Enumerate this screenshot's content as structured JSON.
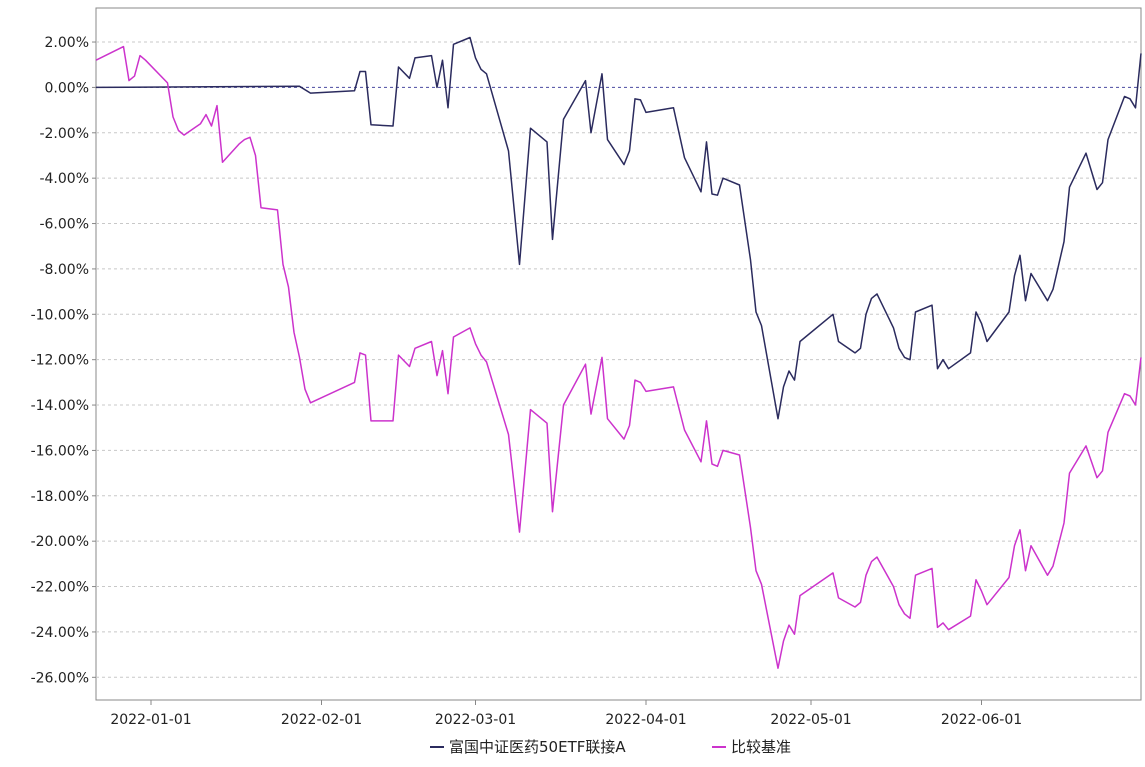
{
  "chart_data": {
    "type": "line",
    "title": "",
    "xlabel": "",
    "ylabel": "",
    "x_ticks": [
      "2022-01-01",
      "2022-02-01",
      "2022-03-01",
      "2022-04-01",
      "2022-05-01",
      "2022-06-01"
    ],
    "y_ticks": [
      "2.00%",
      "0.00%",
      "-2.00%",
      "-4.00%",
      "-6.00%",
      "-8.00%",
      "-10.00%",
      "-12.00%",
      "-14.00%",
      "-16.00%",
      "-18.00%",
      "-20.00%",
      "-22.00%",
      "-24.00%",
      "-26.00%"
    ],
    "ylim": [
      -27,
      3.5
    ],
    "xlim": [
      "2021-12-22",
      "2022-06-30"
    ],
    "grid": true,
    "legend_position": "bottom-center",
    "reference_line": 0,
    "series": [
      {
        "name": "富国中证医药50ETF联接A",
        "color": "#2b2b5e",
        "points": [
          [
            "2021-12-22",
            0.0
          ],
          [
            "2022-01-28",
            0.05
          ],
          [
            "2022-01-30",
            -0.25
          ],
          [
            "2022-02-07",
            -0.15
          ],
          [
            "2022-02-08",
            0.7
          ],
          [
            "2022-02-09",
            0.7
          ],
          [
            "2022-02-10",
            -1.65
          ],
          [
            "2022-02-14",
            -1.7
          ],
          [
            "2022-02-15",
            0.9
          ],
          [
            "2022-02-17",
            0.4
          ],
          [
            "2022-02-18",
            1.3
          ],
          [
            "2022-02-21",
            1.4
          ],
          [
            "2022-02-22",
            0.0
          ],
          [
            "2022-02-23",
            1.2
          ],
          [
            "2022-02-24",
            -0.9
          ],
          [
            "2022-02-25",
            1.9
          ],
          [
            "2022-02-28",
            2.2
          ],
          [
            "2022-03-01",
            1.3
          ],
          [
            "2022-03-02",
            0.8
          ],
          [
            "2022-03-03",
            0.6
          ],
          [
            "2022-03-07",
            -2.8
          ],
          [
            "2022-03-09",
            -7.8
          ],
          [
            "2022-03-11",
            -1.8
          ],
          [
            "2022-03-14",
            -2.4
          ],
          [
            "2022-03-15",
            -6.7
          ],
          [
            "2022-03-17",
            -1.4
          ],
          [
            "2022-03-21",
            0.3
          ],
          [
            "2022-03-22",
            -2.0
          ],
          [
            "2022-03-24",
            0.6
          ],
          [
            "2022-03-25",
            -2.3
          ],
          [
            "2022-03-28",
            -3.4
          ],
          [
            "2022-03-29",
            -2.8
          ],
          [
            "2022-03-30",
            -0.5
          ],
          [
            "2022-03-31",
            -0.55
          ],
          [
            "2022-04-01",
            -1.1
          ],
          [
            "2022-04-06",
            -0.9
          ],
          [
            "2022-04-08",
            -3.1
          ],
          [
            "2022-04-11",
            -4.6
          ],
          [
            "2022-04-12",
            -2.4
          ],
          [
            "2022-04-13",
            -4.7
          ],
          [
            "2022-04-14",
            -4.75
          ],
          [
            "2022-04-15",
            -4.0
          ],
          [
            "2022-04-18",
            -4.3
          ],
          [
            "2022-04-20",
            -7.6
          ],
          [
            "2022-04-21",
            -9.9
          ],
          [
            "2022-04-22",
            -10.5
          ],
          [
            "2022-04-25",
            -14.6
          ],
          [
            "2022-04-26",
            -13.2
          ],
          [
            "2022-04-27",
            -12.5
          ],
          [
            "2022-04-28",
            -12.9
          ],
          [
            "2022-04-29",
            -11.2
          ],
          [
            "2022-05-05",
            -10.0
          ],
          [
            "2022-05-06",
            -11.2
          ],
          [
            "2022-05-09",
            -11.7
          ],
          [
            "2022-05-10",
            -11.5
          ],
          [
            "2022-05-11",
            -10.0
          ],
          [
            "2022-05-12",
            -9.3
          ],
          [
            "2022-05-13",
            -9.1
          ],
          [
            "2022-05-16",
            -10.6
          ],
          [
            "2022-05-17",
            -11.5
          ],
          [
            "2022-05-18",
            -11.9
          ],
          [
            "2022-05-19",
            -12.0
          ],
          [
            "2022-05-20",
            -9.9
          ],
          [
            "2022-05-23",
            -9.6
          ],
          [
            "2022-05-24",
            -12.4
          ],
          [
            "2022-05-25",
            -12.0
          ],
          [
            "2022-05-26",
            -12.4
          ],
          [
            "2022-05-30",
            -11.7
          ],
          [
            "2022-05-31",
            -9.9
          ],
          [
            "2022-06-01",
            -10.4
          ],
          [
            "2022-06-02",
            -11.2
          ],
          [
            "2022-06-06",
            -9.9
          ],
          [
            "2022-06-07",
            -8.3
          ],
          [
            "2022-06-08",
            -7.4
          ],
          [
            "2022-06-09",
            -9.4
          ],
          [
            "2022-06-10",
            -8.2
          ],
          [
            "2022-06-13",
            -9.4
          ],
          [
            "2022-06-14",
            -8.9
          ],
          [
            "2022-06-16",
            -6.8
          ],
          [
            "2022-06-17",
            -4.4
          ],
          [
            "2022-06-20",
            -2.9
          ],
          [
            "2022-06-21",
            -3.7
          ],
          [
            "2022-06-22",
            -4.5
          ],
          [
            "2022-06-23",
            -4.2
          ],
          [
            "2022-06-24",
            -2.3
          ],
          [
            "2022-06-27",
            -0.4
          ],
          [
            "2022-06-28",
            -0.5
          ],
          [
            "2022-06-29",
            -0.9
          ],
          [
            "2022-06-30",
            1.5
          ]
        ]
      },
      {
        "name": "比较基准",
        "color": "#cc33cc",
        "points": [
          [
            "2021-12-22",
            1.2
          ],
          [
            "2021-12-27",
            1.8
          ],
          [
            "2021-12-28",
            0.3
          ],
          [
            "2021-12-29",
            0.5
          ],
          [
            "2021-12-30",
            1.4
          ],
          [
            "2021-12-31",
            1.2
          ],
          [
            "2022-01-04",
            0.2
          ],
          [
            "2022-01-05",
            -1.3
          ],
          [
            "2022-01-06",
            -1.9
          ],
          [
            "2022-01-07",
            -2.1
          ],
          [
            "2022-01-10",
            -1.6
          ],
          [
            "2022-01-11",
            -1.2
          ],
          [
            "2022-01-12",
            -1.7
          ],
          [
            "2022-01-13",
            -0.8
          ],
          [
            "2022-01-14",
            -3.3
          ],
          [
            "2022-01-17",
            -2.5
          ],
          [
            "2022-01-18",
            -2.3
          ],
          [
            "2022-01-19",
            -2.2
          ],
          [
            "2022-01-20",
            -3.0
          ],
          [
            "2022-01-21",
            -5.3
          ],
          [
            "2022-01-24",
            -5.4
          ],
          [
            "2022-01-25",
            -7.8
          ],
          [
            "2022-01-26",
            -8.8
          ],
          [
            "2022-01-27",
            -10.8
          ],
          [
            "2022-01-28",
            -11.9
          ],
          [
            "2022-01-29",
            -13.3
          ],
          [
            "2022-01-30",
            -13.9
          ],
          [
            "2022-02-07",
            -13.0
          ],
          [
            "2022-02-08",
            -11.7
          ],
          [
            "2022-02-09",
            -11.8
          ],
          [
            "2022-02-10",
            -14.7
          ],
          [
            "2022-02-14",
            -14.7
          ],
          [
            "2022-02-15",
            -11.8
          ],
          [
            "2022-02-17",
            -12.3
          ],
          [
            "2022-02-18",
            -11.5
          ],
          [
            "2022-02-21",
            -11.2
          ],
          [
            "2022-02-22",
            -12.7
          ],
          [
            "2022-02-23",
            -11.6
          ],
          [
            "2022-02-24",
            -13.5
          ],
          [
            "2022-02-25",
            -11.0
          ],
          [
            "2022-02-28",
            -10.6
          ],
          [
            "2022-03-01",
            -11.3
          ],
          [
            "2022-03-02",
            -11.8
          ],
          [
            "2022-03-03",
            -12.1
          ],
          [
            "2022-03-07",
            -15.3
          ],
          [
            "2022-03-09",
            -19.6
          ],
          [
            "2022-03-11",
            -14.2
          ],
          [
            "2022-03-14",
            -14.8
          ],
          [
            "2022-03-15",
            -18.7
          ],
          [
            "2022-03-17",
            -14.0
          ],
          [
            "2022-03-21",
            -12.2
          ],
          [
            "2022-03-22",
            -14.4
          ],
          [
            "2022-03-24",
            -11.9
          ],
          [
            "2022-03-25",
            -14.6
          ],
          [
            "2022-03-28",
            -15.5
          ],
          [
            "2022-03-29",
            -14.9
          ],
          [
            "2022-03-30",
            -12.9
          ],
          [
            "2022-03-31",
            -13.0
          ],
          [
            "2022-04-01",
            -13.4
          ],
          [
            "2022-04-06",
            -13.2
          ],
          [
            "2022-04-08",
            -15.1
          ],
          [
            "2022-04-11",
            -16.5
          ],
          [
            "2022-04-12",
            -14.7
          ],
          [
            "2022-04-13",
            -16.6
          ],
          [
            "2022-04-14",
            -16.7
          ],
          [
            "2022-04-15",
            -16.0
          ],
          [
            "2022-04-18",
            -16.2
          ],
          [
            "2022-04-20",
            -19.4
          ],
          [
            "2022-04-21",
            -21.3
          ],
          [
            "2022-04-22",
            -21.9
          ],
          [
            "2022-04-25",
            -25.6
          ],
          [
            "2022-04-26",
            -24.4
          ],
          [
            "2022-04-27",
            -23.7
          ],
          [
            "2022-04-28",
            -24.1
          ],
          [
            "2022-04-29",
            -22.4
          ],
          [
            "2022-05-05",
            -21.4
          ],
          [
            "2022-05-06",
            -22.5
          ],
          [
            "2022-05-09",
            -22.9
          ],
          [
            "2022-05-10",
            -22.7
          ],
          [
            "2022-05-11",
            -21.5
          ],
          [
            "2022-05-12",
            -20.9
          ],
          [
            "2022-05-13",
            -20.7
          ],
          [
            "2022-05-16",
            -22.0
          ],
          [
            "2022-05-17",
            -22.8
          ],
          [
            "2022-05-18",
            -23.2
          ],
          [
            "2022-05-19",
            -23.4
          ],
          [
            "2022-05-20",
            -21.5
          ],
          [
            "2022-05-23",
            -21.2
          ],
          [
            "2022-05-24",
            -23.8
          ],
          [
            "2022-05-25",
            -23.6
          ],
          [
            "2022-05-26",
            -23.9
          ],
          [
            "2022-05-30",
            -23.3
          ],
          [
            "2022-05-31",
            -21.7
          ],
          [
            "2022-06-01",
            -22.2
          ],
          [
            "2022-06-02",
            -22.8
          ],
          [
            "2022-06-06",
            -21.6
          ],
          [
            "2022-06-07",
            -20.2
          ],
          [
            "2022-06-08",
            -19.5
          ],
          [
            "2022-06-09",
            -21.3
          ],
          [
            "2022-06-10",
            -20.2
          ],
          [
            "2022-06-13",
            -21.5
          ],
          [
            "2022-06-14",
            -21.1
          ],
          [
            "2022-06-16",
            -19.2
          ],
          [
            "2022-06-17",
            -17.0
          ],
          [
            "2022-06-20",
            -15.8
          ],
          [
            "2022-06-21",
            -16.5
          ],
          [
            "2022-06-22",
            -17.2
          ],
          [
            "2022-06-23",
            -16.9
          ],
          [
            "2022-06-24",
            -15.2
          ],
          [
            "2022-06-27",
            -13.5
          ],
          [
            "2022-06-28",
            -13.6
          ],
          [
            "2022-06-29",
            -14.0
          ],
          [
            "2022-06-30",
            -11.9
          ]
        ]
      }
    ]
  }
}
